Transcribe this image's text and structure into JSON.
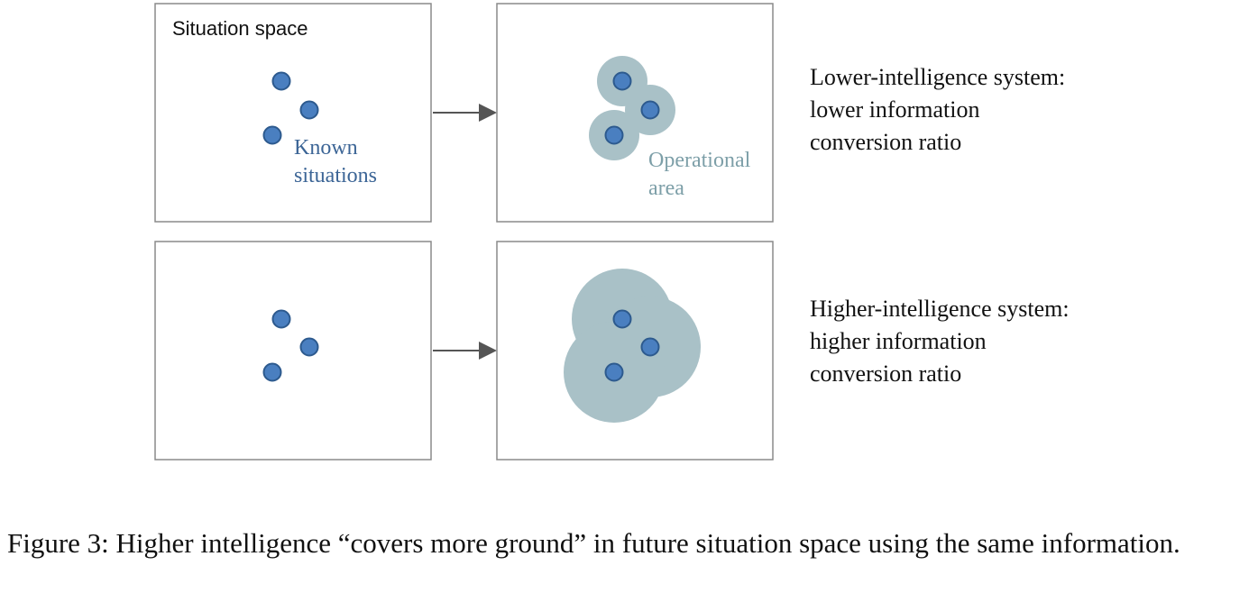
{
  "top_row": {
    "left_box_label": "Situation space",
    "known_label_line1": "Known",
    "known_label_line2": "situations",
    "operational_label_line1": "Operational",
    "operational_label_line2": "area",
    "description": [
      "Lower-intelligence system:",
      "lower information",
      "conversion ratio"
    ]
  },
  "bottom_row": {
    "description": [
      "Higher-intelligence system:",
      "higher information",
      "conversion ratio"
    ]
  },
  "caption": "Figure 3: Higher intelligence “covers more ground” in future situation space using the same information.",
  "colors": {
    "dot_fill": "#4a7fc0",
    "dot_stroke": "#2d5a8e",
    "area_fill": "#a9c1c7",
    "box_stroke": "#8a8a8a",
    "arrow": "#555555"
  }
}
